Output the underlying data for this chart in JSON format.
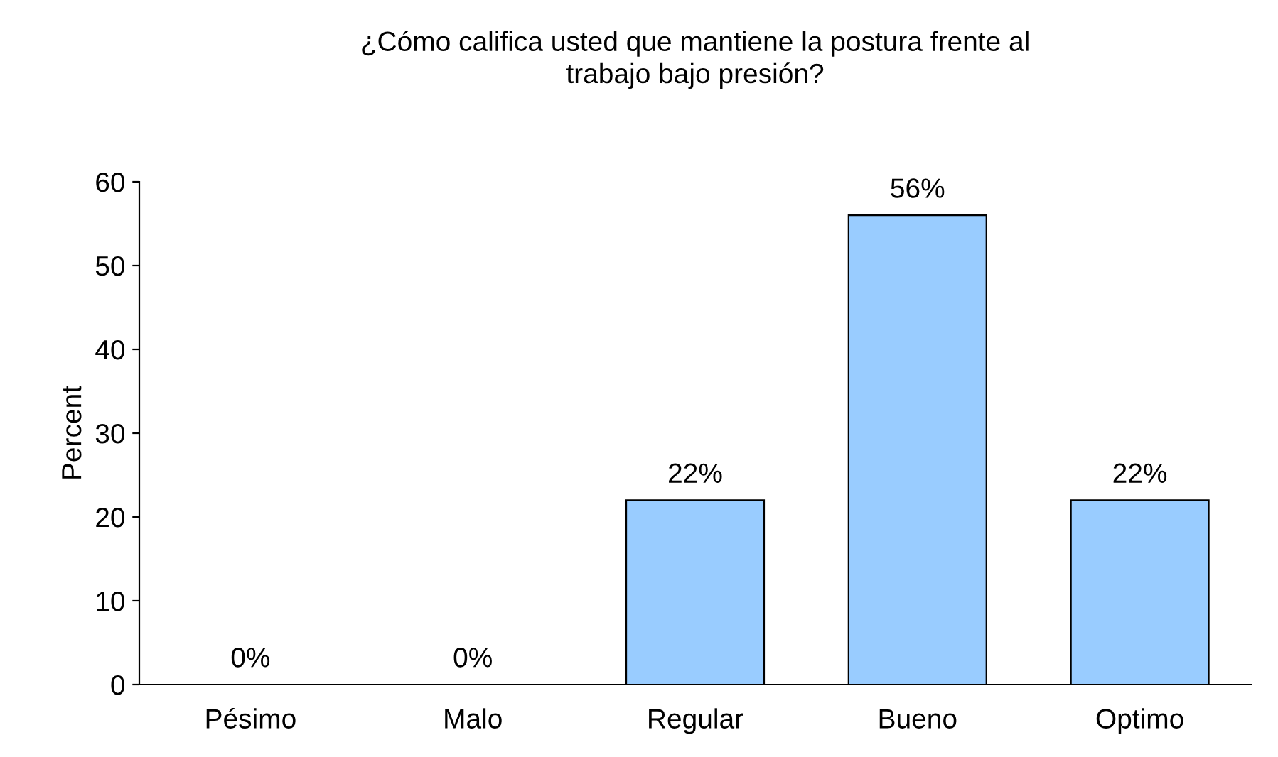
{
  "chart_data": {
    "type": "bar",
    "title": "¿Cómo califica usted que mantiene la postura frente al\ntrabajo bajo presión?",
    "ylabel": "Percent",
    "categories": [
      "Pésimo",
      "Malo",
      "Regular",
      "Bueno",
      "Optimo"
    ],
    "values": [
      0,
      0,
      22,
      56,
      22
    ],
    "value_labels": [
      "0%",
      "0%",
      "22%",
      "56%",
      "22%"
    ],
    "color": "#99ccff",
    "ylim": [
      0,
      60
    ],
    "yticks": [
      0,
      10,
      20,
      30,
      40,
      50,
      60
    ],
    "grid": false
  }
}
